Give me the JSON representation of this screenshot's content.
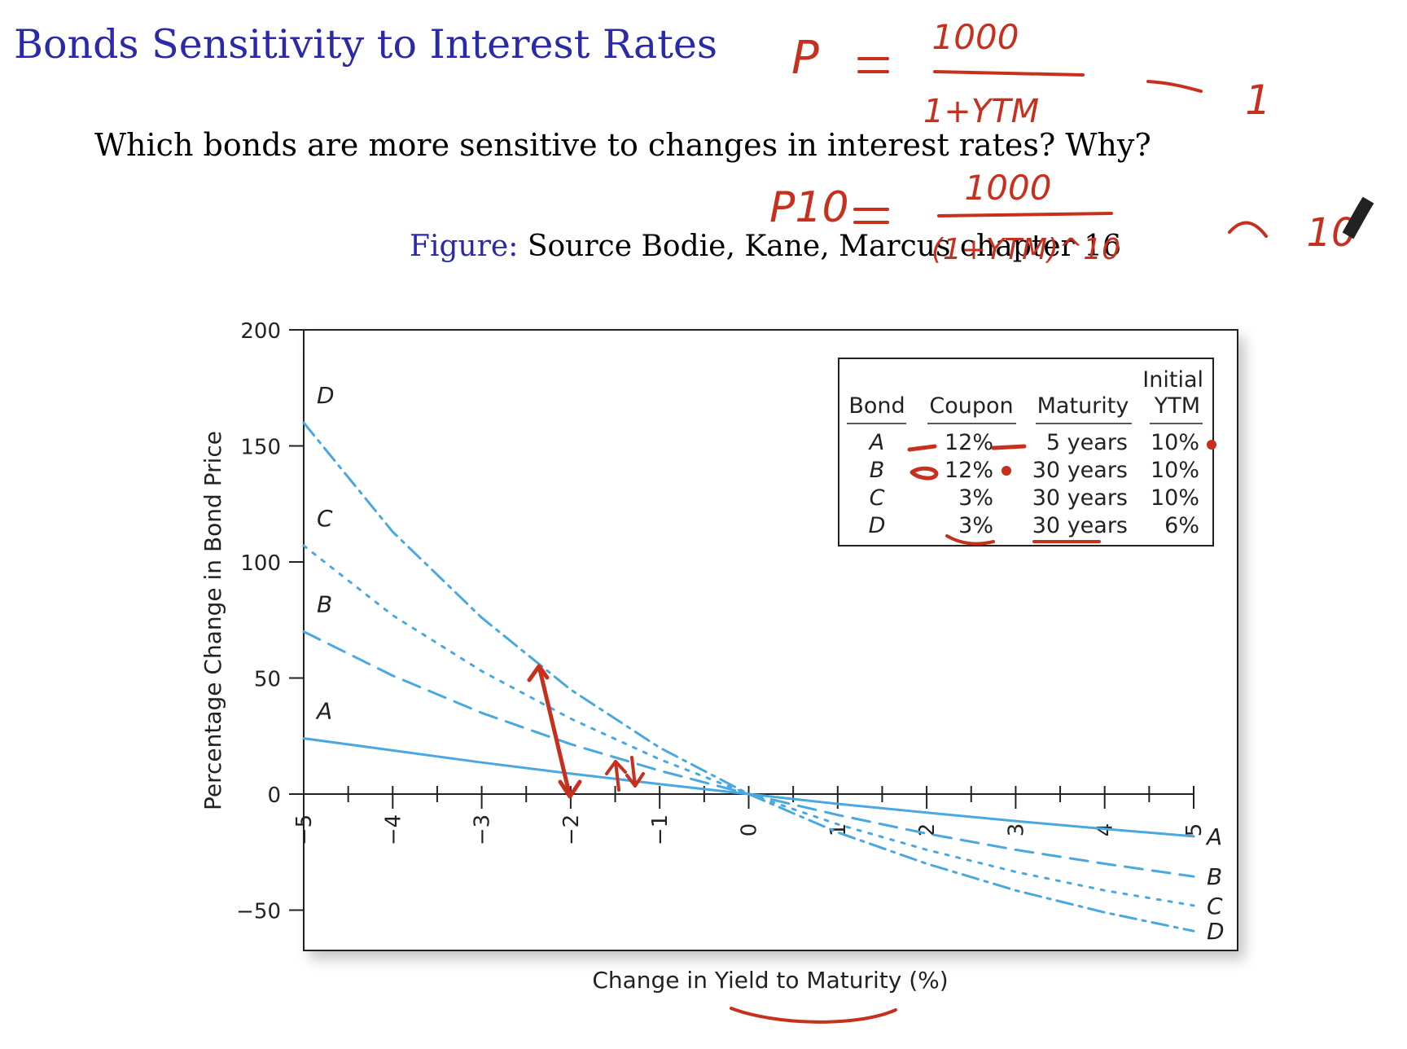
{
  "slide": {
    "title": "Bonds Sensitivity to Interest Rates",
    "question": "Which bonds are more sensitive to changes in interest rates? Why?",
    "caption_label": "Figure:",
    "caption_text": "Source Bodie, Kane, Marcus chapter 16"
  },
  "annotations": {
    "formula1_lhs": "P",
    "formula1_num": "1000",
    "formula1_den": "1+YTM",
    "formula1_result": "1",
    "formula2_lhs": "P10",
    "formula2_num": "1000",
    "formula2_den": "(1+YTM)^10",
    "formula2_result": "10"
  },
  "colors": {
    "title": "#2a2aa8",
    "series": "#4aa8e0",
    "ink": "#c8301e"
  },
  "chart_data": {
    "type": "line",
    "xlabel": "Change in Yield to Maturity (%)",
    "ylabel": "Percentage Change in Bond Price",
    "xlim": [
      -5,
      5
    ],
    "ylim": [
      -68,
      200
    ],
    "x_ticks": [
      "−5",
      "−4",
      "−3",
      "−2",
      "−1",
      "0",
      "1",
      "2",
      "3",
      "4",
      "5"
    ],
    "y_ticks": [
      "200",
      "150",
      "100",
      "50",
      "0",
      "−50"
    ],
    "x": [
      -5,
      -4,
      -3,
      -2,
      -1,
      0,
      1,
      2,
      3,
      4,
      5
    ],
    "series": [
      {
        "name": "A",
        "style": "solid",
        "values": [
          24.0,
          18.8,
          13.6,
          8.8,
          4.3,
          0,
          -4.2,
          -8.0,
          -11.6,
          -15.0,
          -18.2
        ]
      },
      {
        "name": "B",
        "style": "dashed",
        "values": [
          70.0,
          51.0,
          35.0,
          21.5,
          10.1,
          0,
          -9.0,
          -17.0,
          -24.0,
          -30.0,
          -35.5
        ]
      },
      {
        "name": "C",
        "style": "dotted",
        "values": [
          107.0,
          77.0,
          53.0,
          32.5,
          15.0,
          0,
          -13.0,
          -24.0,
          -33.5,
          -41.5,
          -48.0
        ]
      },
      {
        "name": "D",
        "style": "dashdot",
        "values": [
          160.0,
          113.0,
          76.0,
          45.0,
          20.0,
          0,
          -16.5,
          -30.0,
          -41.5,
          -51.0,
          -59.0
        ]
      }
    ],
    "legend": {
      "headers": [
        "Bond",
        "Coupon",
        "Maturity",
        "Initial YTM"
      ],
      "header_top": "Initial",
      "header_bottom": "YTM",
      "rows": [
        [
          "A",
          "12%",
          "5 years",
          "10%"
        ],
        [
          "B",
          "12%",
          "30 years",
          "10%"
        ],
        [
          "C",
          "3%",
          "30 years",
          "10%"
        ],
        [
          "D",
          "3%",
          "30 years",
          "6%"
        ]
      ],
      "placement": "top-right"
    }
  }
}
